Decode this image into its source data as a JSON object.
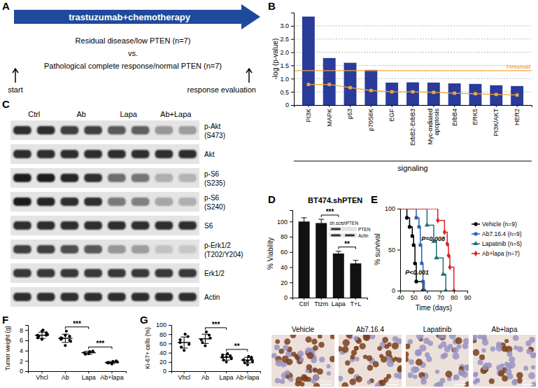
{
  "panel_a": {
    "panel": "A",
    "arrow_text": "trastuzumab+chemotherapy",
    "start": "start",
    "end": "response evaluation",
    "group_1": "Residual disease/low PTEN (n=7)",
    "versus": "vs.",
    "group_2": "Pathological complete response/normal PTEN (n=7)"
  },
  "panel_c": {
    "panel": "C",
    "groups": [
      "Ctrl",
      "Ab",
      "Lapa",
      "Ab+Lapa"
    ],
    "rows": [
      {
        "label": "p-Akt",
        "sublabel": "(S473)",
        "intensity": [
          0.85,
          0.85,
          0.8,
          0.8,
          0.72,
          0.7,
          0.5,
          0.48
        ]
      },
      {
        "label": "Akt",
        "intensity": [
          0.85,
          0.85,
          0.85,
          0.85,
          0.85,
          0.85,
          0.85,
          0.85
        ]
      },
      {
        "label": "p-S6",
        "sublabel": "(S235)",
        "intensity": [
          0.9,
          0.9,
          0.88,
          0.85,
          0.65,
          0.62,
          0.42,
          0.4
        ]
      },
      {
        "label": "p-S6",
        "sublabel": "(S240)",
        "intensity": [
          0.9,
          0.88,
          0.85,
          0.85,
          0.6,
          0.58,
          0.45,
          0.42
        ]
      },
      {
        "label": "S6",
        "intensity": [
          0.85,
          0.85,
          0.85,
          0.85,
          0.85,
          0.85,
          0.85,
          0.85
        ]
      },
      {
        "label": "p-Erk1/2",
        "sublabel": "(T202/Y204)",
        "intensity": [
          0.8,
          0.8,
          0.75,
          0.72,
          0.5,
          0.48,
          0.35,
          0.33
        ]
      },
      {
        "label": "Erk1/2",
        "intensity": [
          0.82,
          0.82,
          0.82,
          0.82,
          0.82,
          0.82,
          0.82,
          0.82
        ]
      },
      {
        "label": "Actin",
        "intensity": [
          0.85,
          0.85,
          0.85,
          0.85,
          0.85,
          0.85,
          0.85,
          0.85
        ]
      }
    ]
  },
  "chart_data": [
    {
      "type": "bar",
      "panel": "B",
      "ylabel": "-log (p-value)",
      "xlabel": "signaling",
      "categories": [
        "PI3K",
        "MAPK",
        "p53",
        "p70S6K",
        "EGF",
        "ErbB2-ErbB3",
        "Myc-mdiated apoptosis",
        "ErbB4",
        "ERK5",
        "PI3K/AKT",
        "HER2"
      ],
      "series": [
        {
          "type": "bar",
          "color": "#2a3b99",
          "values": [
            3.35,
            1.78,
            1.6,
            1.33,
            0.85,
            0.86,
            0.85,
            0.82,
            0.8,
            0.75,
            0.72
          ]
        },
        {
          "type": "line",
          "color": "#f2a63a",
          "marker": "square",
          "values": [
            0.78,
            0.78,
            0.66,
            0.55,
            0.5,
            0.5,
            0.48,
            0.45,
            0.43,
            0.4,
            0.38
          ]
        }
      ],
      "ylim": [
        0,
        3.5
      ],
      "yticks": [
        0,
        0.5,
        {
          "value": 1,
          "label": "1.0"
        },
        1.5,
        {
          "value": 2,
          "label": "2.0"
        },
        2.5,
        {
          "value": 3,
          "label": "3.0"
        }
      ],
      "grid": true,
      "threshold": {
        "value": 1.3,
        "label": "Threshold"
      }
    },
    {
      "type": "bar",
      "panel": "D",
      "title": "BT474.shPTEN",
      "ylabel": "% Viability",
      "categories": [
        "Ctrl",
        "Ttzm",
        "Lapa",
        "T+L"
      ],
      "values": [
        100,
        98,
        58,
        45
      ],
      "errors": [
        5,
        5,
        3,
        4
      ],
      "color": "#111111",
      "ylim": [
        0,
        115
      ],
      "yticks": [
        0,
        20,
        40,
        60,
        80,
        100
      ],
      "annotations": [
        {
          "text": "***",
          "between": [
            "Ttzm",
            "Lapa"
          ]
        },
        {
          "text": "**",
          "between": [
            "Lapa",
            "T+L"
          ]
        }
      ],
      "inset": {
        "columns": [
          "sh.scr",
          "shPTEN"
        ],
        "rows": [
          "PTEN",
          "Actin"
        ],
        "intensity": [
          [
            0.85,
            0.2
          ],
          [
            0.85,
            0.85
          ]
        ]
      }
    },
    {
      "type": "line",
      "panel": "E",
      "xlabel": "Time (days)",
      "ylabel": "% survival",
      "xlim": [
        40,
        90
      ],
      "xticks": [
        40,
        50,
        60,
        70,
        80,
        90
      ],
      "ylim": [
        0,
        100
      ],
      "yticks": [
        0,
        50,
        100
      ],
      "line_style": "step",
      "legend": "right",
      "series": [
        {
          "name": "Vehicle (n=9)",
          "color": "#000000",
          "marker": "circle",
          "x": [
            40,
            45,
            47,
            49,
            50,
            51,
            52,
            57
          ],
          "values": [
            100,
            88.9,
            77.8,
            66.7,
            55.6,
            33.3,
            11.1,
            0
          ]
        },
        {
          "name": "Ab7.16.4 (n=9)",
          "color": "#2a5fb8",
          "marker": "square",
          "x": [
            40,
            52,
            54,
            55,
            56,
            57,
            58
          ],
          "values": [
            100,
            88.9,
            77.8,
            55.6,
            33.3,
            11.1,
            0
          ]
        },
        {
          "name": "Lapatinib (n=5)",
          "color": "#1f6f78",
          "marker": "triangle",
          "x": [
            40,
            60,
            65,
            67,
            72,
            74
          ],
          "values": [
            100,
            80,
            60,
            40,
            20,
            0
          ]
        },
        {
          "name": "Ab+lapa (n=7)",
          "color": "#e02020",
          "marker": "diamond",
          "x": [
            40,
            68,
            73,
            75,
            76,
            77,
            80
          ],
          "values": [
            100,
            85.7,
            71.4,
            57.1,
            42.9,
            28.6,
            0
          ]
        }
      ],
      "annotations": [
        {
          "text": "P=0.008"
        },
        {
          "text": "P<0.001"
        }
      ]
    },
    {
      "type": "scatter",
      "panel": "F",
      "ylabel": "Tumor weight (g)",
      "categories": [
        "Vhcl",
        "Ab",
        "Lapa",
        "Ab+lapa"
      ],
      "values": [
        [
          7.0,
          6.2,
          7.5,
          6.8,
          8.0,
          7.2,
          6.5,
          7.8,
          7.0
        ],
        [
          6.2,
          5.0,
          6.8,
          6.4,
          7.8,
          5.8,
          6.5,
          7.0,
          6.0
        ],
        [
          3.6,
          3.4,
          3.9,
          3.3,
          3.8
        ],
        [
          1.7,
          1.4,
          2.0,
          1.6,
          1.9,
          1.8,
          1.6
        ]
      ],
      "means": [
        7.0,
        6.4,
        3.6,
        1.7
      ],
      "errors": [
        0.6,
        0.8,
        0.3,
        0.2
      ],
      "color": "#000000",
      "ylim": [
        0,
        9
      ],
      "yticks": [
        0,
        2,
        4,
        6,
        8
      ],
      "annotations": [
        {
          "text": "***",
          "between": [
            "Ab",
            "Lapa"
          ]
        },
        {
          "text": "***",
          "between": [
            "Lapa",
            "Ab+lapa"
          ]
        }
      ]
    },
    {
      "type": "scatter",
      "panel": "G",
      "ylabel": "Ki-67+ cells (%)",
      "categories": [
        "Vhcl",
        "Ab",
        "Lapa",
        "Ab+lapa"
      ],
      "values": [
        [
          62,
          45,
          75,
          52,
          80,
          58,
          68
        ],
        [
          68,
          55,
          78,
          62,
          85,
          72
        ],
        [
          30,
          20,
          33,
          24,
          38,
          27,
          35,
          31
        ],
        [
          24,
          14,
          27,
          18,
          32,
          20,
          25,
          22,
          30
        ]
      ],
      "means": [
        62,
        70,
        30,
        24
      ],
      "errors": [
        12,
        10,
        6,
        6
      ],
      "color": "#000000",
      "ylim": [
        0,
        100
      ],
      "yticks": [
        0,
        20,
        40,
        60,
        80,
        100
      ],
      "annotations": [
        {
          "text": "***",
          "between": [
            "Ab",
            "Lapa"
          ]
        },
        {
          "text": "**",
          "between": [
            "Lapa",
            "Ab+lapa"
          ]
        }
      ]
    }
  ],
  "panel_g_images": {
    "labels": [
      "Vehicle",
      "Ab7.16.4",
      "Lapatinib",
      "Ab+lapa"
    ],
    "scale_bar": "20 μm"
  }
}
